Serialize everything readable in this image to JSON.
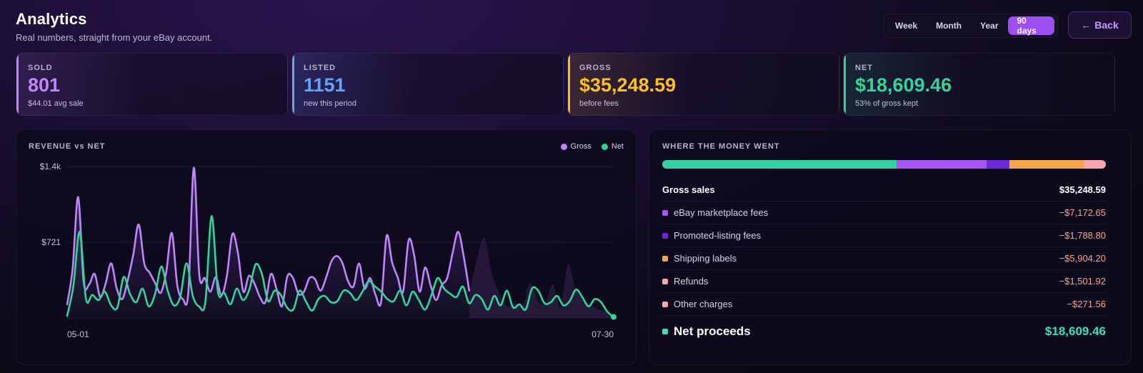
{
  "header": {
    "title": "Analytics",
    "subtitle": "Real numbers, straight from your eBay account."
  },
  "periods": [
    "Week",
    "Month",
    "Year",
    "90 days"
  ],
  "active_period": "90 days",
  "back": {
    "label": "Back",
    "icon": "arrow-left-icon"
  },
  "stats": [
    {
      "label": "SOLD",
      "value": "801",
      "note": "$44.01 avg sale",
      "color": "#c084fc"
    },
    {
      "label": "LISTED",
      "value": "1151",
      "note": "new this period",
      "color": "#60a5fa"
    },
    {
      "label": "GROSS",
      "value": "$35,248.59",
      "note": "before fees",
      "color": "#fbbf24"
    },
    {
      "label": "NET",
      "value": "$18,609.46",
      "note": "53% of gross kept",
      "color": "#34d399"
    }
  ],
  "revenue_panel": {
    "title": "REVENUE vs NET",
    "legend": [
      {
        "name": "Gross",
        "color": "#c084fc"
      },
      {
        "name": "Net",
        "color": "#34d399"
      }
    ]
  },
  "chart_data": {
    "type": "line",
    "title": "REVENUE vs NET",
    "x_start_label": "05-01",
    "x_end_label": "07-30",
    "ytick_labels": [
      "$1.4k",
      "$721"
    ],
    "ylim": [
      0,
      1442
    ],
    "grid": true,
    "legend_position": "top-right",
    "series": [
      {
        "name": "Gross",
        "color": "#c084fc",
        "values": [
          130,
          470,
          1150,
          340,
          320,
          420,
          200,
          330,
          520,
          280,
          180,
          360,
          600,
          890,
          520,
          430,
          330,
          240,
          440,
          810,
          310,
          180,
          240,
          1430,
          410,
          380,
          250,
          390,
          220,
          400,
          800,
          620,
          250,
          400,
          330,
          200,
          150,
          420,
          280,
          110,
          400,
          380,
          230,
          250,
          380,
          370,
          260,
          380,
          540,
          590,
          520,
          350,
          300,
          520,
          280,
          380,
          220,
          150,
          780,
          530,
          390,
          250,
          740,
          600,
          250,
          480,
          310,
          170,
          310,
          380,
          620,
          820,
          590,
          260
        ]
      },
      {
        "name": "Net",
        "color": "#34d399",
        "values": [
          20,
          310,
          820,
          180,
          220,
          170,
          250,
          120,
          100,
          390,
          230,
          150,
          280,
          110,
          230,
          490,
          260,
          120,
          200,
          520,
          210,
          110,
          150,
          970,
          250,
          240,
          130,
          280,
          170,
          270,
          510,
          420,
          160,
          260,
          220,
          100,
          80,
          260,
          160,
          70,
          180,
          210,
          150,
          160,
          260,
          240,
          170,
          250,
          350,
          300,
          250,
          180,
          160,
          260,
          120,
          250,
          170,
          80,
          220,
          380,
          280,
          230,
          200,
          300,
          140,
          220,
          180,
          80,
          210,
          120,
          260,
          100,
          130,
          80,
          280,
          260,
          140,
          150,
          210,
          120,
          160,
          270,
          200,
          110,
          180,
          150,
          60,
          10
        ]
      },
      {
        "name": "Gross (faded)",
        "color": "#3a2350",
        "values": [
          220,
          560,
          760,
          420,
          230,
          110,
          150,
          120,
          330,
          160,
          140,
          320,
          100,
          510,
          270,
          180,
          120,
          80,
          60,
          20
        ]
      }
    ]
  },
  "money_panel": {
    "title": "WHERE THE MONEY WENT",
    "bar_segments": [
      {
        "value": 18609.46,
        "color": "#34d1a0"
      },
      {
        "value": 7172.65,
        "color": "#a855f7"
      },
      {
        "value": 1788.8,
        "color": "#6d28d9"
      },
      {
        "value": 5904.2,
        "color": "#f5a54a"
      },
      {
        "value": 1501.92,
        "color": "#f8a5b0"
      },
      {
        "value": 271.56,
        "color": "#f8a5b0"
      }
    ],
    "gross": {
      "label": "Gross sales",
      "amount": "$35,248.59"
    },
    "rows": [
      {
        "label": "eBay marketplace fees",
        "amount": "−$7,172.65",
        "color": "#a855f7"
      },
      {
        "label": "Promoted-listing fees",
        "amount": "−$1,788.80",
        "color": "#6d28d9"
      },
      {
        "label": "Shipping labels",
        "amount": "−$5,904.20",
        "color": "#f5a54a"
      },
      {
        "label": "Refunds",
        "amount": "−$1,501.92",
        "color": "#f8a5b0"
      },
      {
        "label": "Other charges",
        "amount": "−$271.56",
        "color": "#f8a5b0"
      }
    ],
    "net": {
      "label": "Net proceeds",
      "amount": "$18,609.46",
      "color": "#3ee0b0"
    }
  }
}
